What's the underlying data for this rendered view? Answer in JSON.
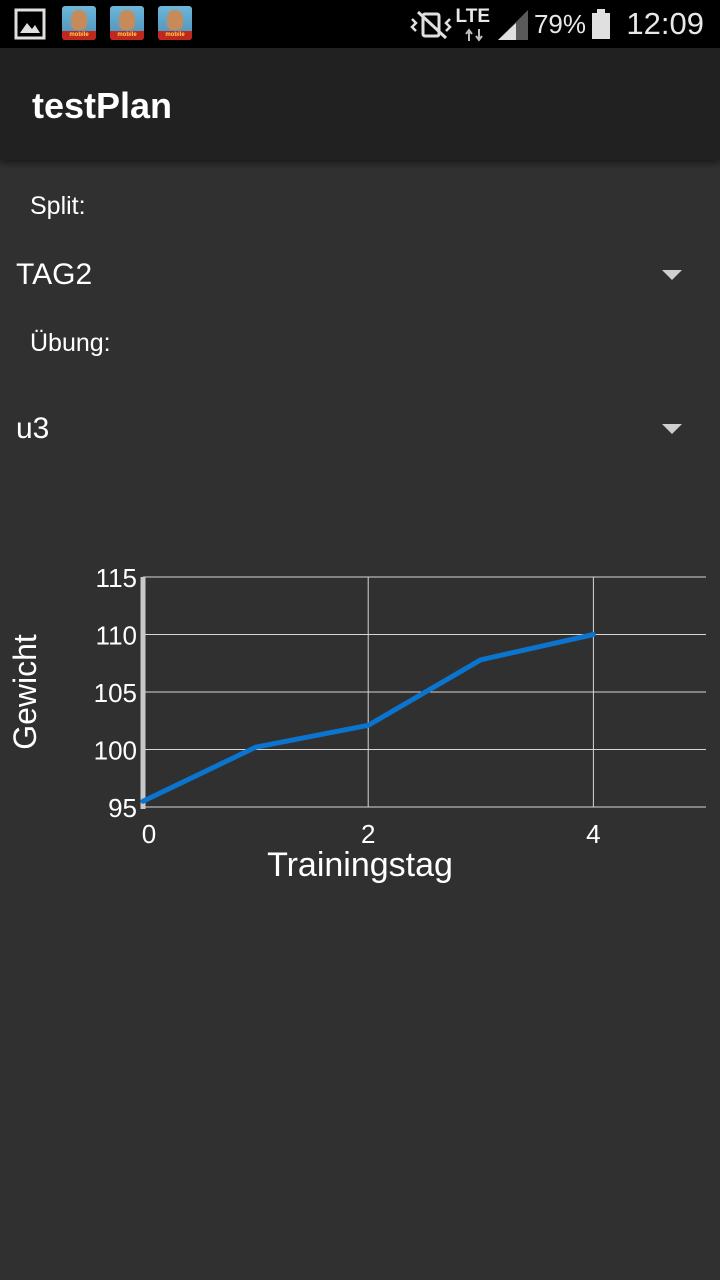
{
  "status_bar": {
    "battery_percent": "79%",
    "network": "LTE",
    "time": "12:09",
    "notification_app_label": "mobile"
  },
  "app_bar": {
    "title": "testPlan"
  },
  "form": {
    "split_label": "Split:",
    "split_value": "TAG2",
    "uebung_label": "Übung:",
    "uebung_value": "u3"
  },
  "chart_data": {
    "type": "line",
    "xlabel": "Trainingstag",
    "ylabel": "Gewicht",
    "xlim": [
      0,
      5
    ],
    "ylim": [
      95,
      115
    ],
    "x_ticks": [
      0,
      2,
      4
    ],
    "y_ticks": [
      95,
      100,
      105,
      110,
      115
    ],
    "grid": true,
    "line_color": "#0a74cf",
    "series": [
      {
        "x": [
          0,
          1,
          2,
          3,
          4
        ],
        "y": [
          95.5,
          100.2,
          102.1,
          107.8,
          110
        ]
      }
    ]
  }
}
